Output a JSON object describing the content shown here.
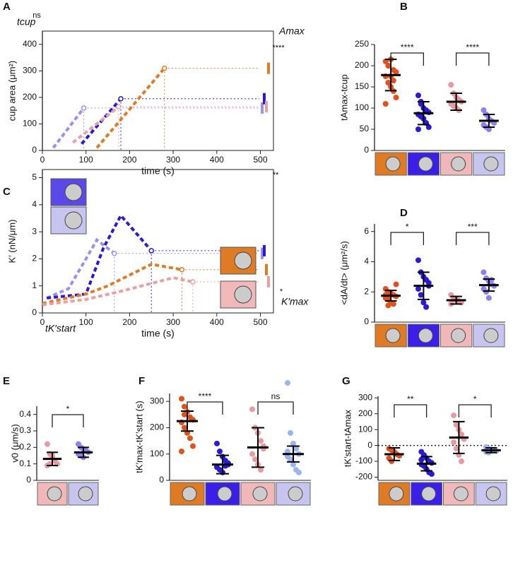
{
  "chart_data": [
    {
      "type": "line",
      "label": "A",
      "xlabel": "time (s)",
      "ylabel": "cup area (μm²)",
      "xlim": [
        0,
        530
      ],
      "ylim": [
        0,
        450
      ],
      "xticks": [
        0,
        100,
        200,
        300,
        400,
        500
      ],
      "yticks": [
        0,
        100,
        200,
        300,
        400
      ],
      "annotations": [
        "tcup",
        "Amax",
        "ns",
        "****"
      ],
      "series": [
        {
          "color": "#9b8ff2",
          "x": [
            25,
            95
          ],
          "y": [
            10,
            160
          ]
        },
        {
          "color": "#2a19d8",
          "x": [
            90,
            180
          ],
          "y": [
            25,
            195
          ]
        },
        {
          "color": "#e8a0a0",
          "x": [
            70,
            175
          ],
          "y": [
            30,
            165
          ]
        },
        {
          "color": "#e07b25",
          "x": [
            125,
            280
          ],
          "y": [
            10,
            310
          ]
        }
      ]
    },
    {
      "type": "strip",
      "label": "B",
      "ylabel": "tAmax-tcup",
      "ylim": [
        0,
        250
      ],
      "yticks": [
        0,
        50,
        100,
        150,
        200,
        250
      ],
      "significance": [
        "****",
        "****"
      ],
      "groups": [
        {
          "color": "#e0521c",
          "icon": "#e07b25",
          "points": [
            210,
            200,
            215,
            190,
            185,
            175,
            160,
            150,
            140,
            125,
            110,
            200,
            175,
            165
          ],
          "mean": 178,
          "sd": 37
        },
        {
          "color": "#2a19d8",
          "icon": "#3b1ee8",
          "points": [
            130,
            115,
            100,
            95,
            90,
            85,
            80,
            75,
            65,
            55,
            50,
            110
          ],
          "mean": 88,
          "sd": 27
        },
        {
          "color": "#e89aa0",
          "icon": "#f0b8b8",
          "points": [
            155,
            135,
            125,
            120,
            115,
            110,
            105,
            100,
            95
          ],
          "mean": 115,
          "sd": 20
        },
        {
          "color": "#8f80f0",
          "icon": "#c8c4f0",
          "points": [
            95,
            85,
            75,
            70,
            65,
            60,
            55,
            50
          ],
          "mean": 70,
          "sd": 15
        }
      ]
    },
    {
      "type": "line",
      "label": "C",
      "xlabel": "time (s)",
      "ylabel": "K′ (nN/μm)",
      "xlim": [
        0,
        530
      ],
      "ylim": [
        0,
        5.3
      ],
      "xticks": [
        0,
        100,
        200,
        300,
        400,
        500
      ],
      "yticks": [
        0,
        1,
        2,
        3,
        4,
        5
      ],
      "annotations": [
        "tK′start",
        "K′max",
        "**",
        "*"
      ],
      "series": [
        {
          "color": "#9b8ff2",
          "x": [
            10,
            60,
            100,
            125,
            165
          ],
          "y": [
            0.55,
            0.9,
            2.0,
            2.7,
            2.2
          ]
        },
        {
          "color": "#2a19d8",
          "x": [
            10,
            100,
            140,
            180,
            250
          ],
          "y": [
            0.55,
            0.7,
            2.4,
            3.6,
            2.3
          ]
        },
        {
          "color": "#e07b25",
          "x": [
            0,
            100,
            150,
            250,
            320
          ],
          "y": [
            0.35,
            0.7,
            1.0,
            1.8,
            1.6
          ]
        },
        {
          "color": "#e8a0a0",
          "x": [
            0,
            100,
            180,
            300,
            345
          ],
          "y": [
            0.3,
            0.5,
            0.8,
            1.3,
            1.15
          ]
        }
      ]
    },
    {
      "type": "strip",
      "label": "D",
      "ylabel": "<dA/dt> (μm²/s)",
      "ylim": [
        0,
        6.5
      ],
      "yticks": [
        0,
        2,
        4,
        6
      ],
      "significance": [
        "*",
        "***"
      ],
      "groups": [
        {
          "color": "#e0521c",
          "icon": "#e07b25",
          "points": [
            2.2,
            2.0,
            1.9,
            1.8,
            1.7,
            1.6,
            1.5,
            1.3,
            1.2,
            2.5,
            1.8,
            1.1
          ],
          "mean": 1.75,
          "sd": 0.35
        },
        {
          "color": "#2a19d8",
          "icon": "#3b1ee8",
          "points": [
            4.1,
            3.3,
            3.0,
            2.8,
            2.4,
            2.2,
            1.8,
            1.3,
            1.0,
            2.6
          ],
          "mean": 2.4,
          "sd": 0.9
        },
        {
          "color": "#e89aa0",
          "icon": "#f0b8b8",
          "points": [
            1.8,
            1.6,
            1.5,
            1.4,
            1.3,
            1.2,
            1.5,
            1.45
          ],
          "mean": 1.45,
          "sd": 0.25
        },
        {
          "color": "#8f80f0",
          "icon": "#c8c4f0",
          "points": [
            3.3,
            2.9,
            2.7,
            2.5,
            2.4,
            2.2,
            2.0,
            1.6,
            2.8
          ],
          "mean": 2.45,
          "sd": 0.4
        }
      ]
    },
    {
      "type": "strip",
      "label": "E",
      "ylabel": "v0 (μm/s)",
      "ylim": [
        0,
        0.45
      ],
      "yticks": [
        0,
        0.1,
        0.2,
        0.3,
        0.4
      ],
      "significance": [
        "*"
      ],
      "groups": [
        {
          "color": "#e89aa0",
          "icon": "#f0b8b8",
          "points": [
            0.22,
            0.16,
            0.14,
            0.12,
            0.1,
            0.09,
            0.1,
            0.15
          ],
          "mean": 0.13,
          "sd": 0.04
        },
        {
          "color": "#8f80f0",
          "icon": "#c8c4f0",
          "points": [
            0.22,
            0.2,
            0.19,
            0.18,
            0.17,
            0.16,
            0.15,
            0.14,
            0.18
          ],
          "mean": 0.17,
          "sd": 0.03
        }
      ]
    },
    {
      "type": "strip",
      "label": "F",
      "ylabel": "tK′max-tK′start (s)",
      "ylim": [
        0,
        330
      ],
      "yticks": [
        0,
        100,
        200,
        300
      ],
      "significance": [
        "****",
        "ns"
      ],
      "groups": [
        {
          "color": "#e0521c",
          "icon": "#e07b25",
          "points": [
            310,
            280,
            260,
            240,
            230,
            220,
            200,
            180,
            160,
            130,
            110,
            250
          ],
          "mean": 225,
          "sd": 38
        },
        {
          "color": "#2a19d8",
          "icon": "#3b1ee8",
          "points": [
            140,
            110,
            90,
            75,
            60,
            50,
            40,
            30,
            55,
            65
          ],
          "mean": 60,
          "sd": 35
        },
        {
          "color": "#e89aa0",
          "icon": "#f0b8b8",
          "points": [
            270,
            200,
            180,
            150,
            120,
            100,
            80,
            60,
            40,
            130
          ],
          "mean": 125,
          "sd": 75
        },
        {
          "color": "#9ab4f0",
          "icon": "#c8c4f0",
          "points": [
            370,
            180,
            140,
            120,
            100,
            90,
            80,
            60,
            40,
            30,
            110
          ],
          "mean": 100,
          "sd": 30
        }
      ]
    },
    {
      "type": "strip",
      "label": "G",
      "ylabel": "tK′start-tAmax",
      "ylim": [
        -220,
        310
      ],
      "yticks": [
        -200,
        -100,
        0,
        100,
        200,
        300
      ],
      "significance": [
        "**",
        "*"
      ],
      "zero_line": true,
      "groups": [
        {
          "color": "#e0521c",
          "icon": "#e07b25",
          "points": [
            -20,
            -30,
            -45,
            -55,
            -65,
            -80,
            -100,
            -40
          ],
          "mean": -55,
          "sd": 40
        },
        {
          "color": "#2a19d8",
          "icon": "#3b1ee8",
          "points": [
            -40,
            -60,
            -80,
            -100,
            -110,
            -120,
            -130,
            -150,
            -170,
            -180,
            -90
          ],
          "mean": -115,
          "sd": 45
        },
        {
          "color": "#e89aa0",
          "icon": "#f0b8b8",
          "points": [
            190,
            130,
            100,
            70,
            40,
            20,
            -20,
            -60,
            -100
          ],
          "mean": 50,
          "sd": 100
        },
        {
          "color": "#9ab4f0",
          "icon": "#c8c4f0",
          "points": [
            -10,
            -20,
            -25,
            -30,
            -35,
            -40,
            -45,
            -30
          ],
          "mean": -30,
          "sd": 15
        }
      ]
    }
  ]
}
